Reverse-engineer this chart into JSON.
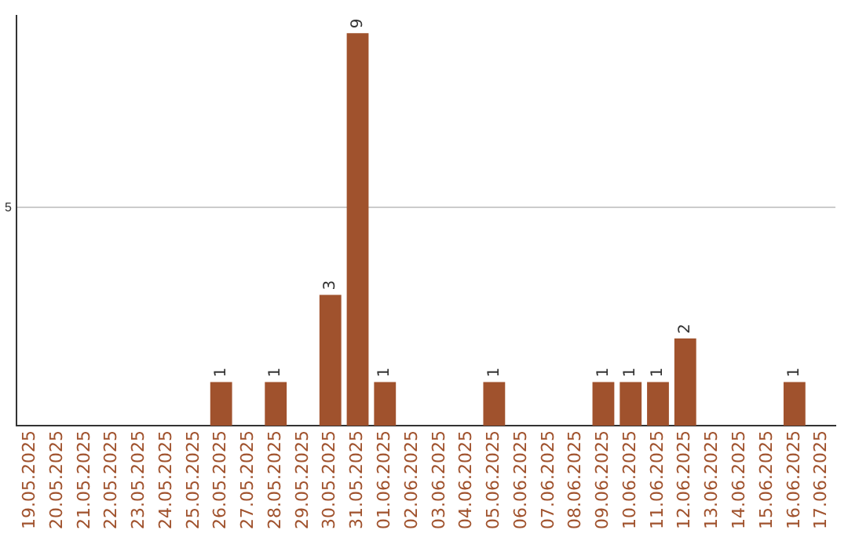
{
  "chart_data": {
    "type": "bar",
    "categories": [
      "19.05.2025",
      "20.05.2025",
      "21.05.2025",
      "22.05.2025",
      "23.05.2025",
      "24.05.2025",
      "25.05.2025",
      "26.05.2025",
      "27.05.2025",
      "28.05.2025",
      "29.05.2025",
      "30.05.2025",
      "31.05.2025",
      "01.06.2025",
      "02.06.2025",
      "03.06.2025",
      "04.06.2025",
      "05.06.2025",
      "06.06.2025",
      "07.06.2025",
      "08.06.2025",
      "09.06.2025",
      "10.06.2025",
      "11.06.2025",
      "12.06.2025",
      "13.06.2025",
      "14.06.2025",
      "15.06.2025",
      "16.06.2025",
      "17.06.2025"
    ],
    "values": [
      0,
      0,
      0,
      0,
      0,
      0,
      0,
      1,
      0,
      1,
      0,
      3,
      9,
      1,
      0,
      0,
      0,
      1,
      0,
      0,
      0,
      1,
      1,
      1,
      2,
      0,
      0,
      0,
      1,
      0
    ],
    "value_labels": [
      null,
      null,
      null,
      null,
      null,
      null,
      null,
      "1",
      null,
      "1",
      null,
      "3",
      "9",
      "1",
      null,
      null,
      null,
      "1",
      null,
      null,
      null,
      "1",
      "1",
      "1",
      "2",
      null,
      null,
      null,
      "1",
      null
    ],
    "color": "#a0522d",
    "ylim": [
      0,
      9.4
    ],
    "yticks": [
      5
    ],
    "grid": "y",
    "legend": false
  }
}
